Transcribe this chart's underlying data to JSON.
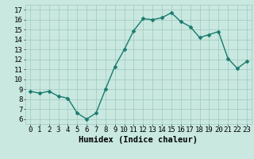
{
  "x": [
    0,
    1,
    2,
    3,
    4,
    5,
    6,
    7,
    8,
    9,
    10,
    11,
    12,
    13,
    14,
    15,
    16,
    17,
    18,
    19,
    20,
    21,
    22,
    23
  ],
  "y": [
    8.8,
    8.6,
    8.8,
    8.3,
    8.1,
    6.6,
    6.0,
    6.6,
    9.0,
    11.3,
    13.0,
    14.9,
    16.1,
    16.0,
    16.2,
    16.7,
    15.8,
    15.3,
    14.2,
    14.5,
    14.8,
    12.1,
    11.1,
    11.8
  ],
  "xlabel": "Humidex (Indice chaleur)",
  "ylim": [
    5.5,
    17.5
  ],
  "xlim": [
    -0.5,
    23.5
  ],
  "yticks": [
    6,
    7,
    8,
    9,
    10,
    11,
    12,
    13,
    14,
    15,
    16,
    17
  ],
  "xticks": [
    0,
    1,
    2,
    3,
    4,
    5,
    6,
    7,
    8,
    9,
    10,
    11,
    12,
    13,
    14,
    15,
    16,
    17,
    18,
    19,
    20,
    21,
    22,
    23
  ],
  "line_color": "#1a7a6e",
  "marker_color": "#1a7a6e",
  "bg_color": "#c8e8e0",
  "grid_color": "#a0c8be",
  "text_color": "#000000",
  "xlabel_fontsize": 7.5,
  "tick_fontsize": 6.5,
  "line_width": 1.0,
  "marker_size": 2.5
}
